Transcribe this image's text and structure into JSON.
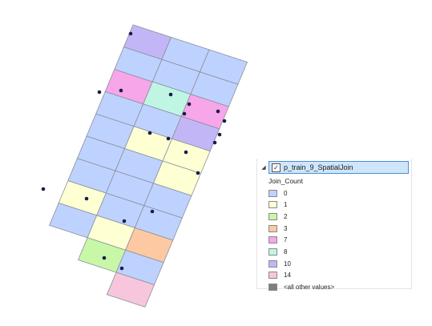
{
  "toc": {
    "layer_name": "p_train_9_SpatialJoin",
    "layer_checked": true,
    "expand_icon": "triangle-down-icon",
    "field_name": "Join_Count",
    "legend": [
      {
        "label": "0",
        "color": "#bed2ff"
      },
      {
        "label": "1",
        "color": "#ffffd4"
      },
      {
        "label": "2",
        "color": "#c8f7a8"
      },
      {
        "label": "3",
        "color": "#fcc9a2"
      },
      {
        "label": "7",
        "color": "#f7a6ea"
      },
      {
        "label": "8",
        "color": "#c0f5e4"
      },
      {
        "label": "10",
        "color": "#c3b6f6"
      },
      {
        "label": "14",
        "color": "#f7c6dc"
      },
      {
        "label": "<all other values>",
        "color": "#7f7f7f"
      }
    ]
  },
  "map": {
    "outline_color": "#8a8f99",
    "point_color": "#1a1b4b",
    "cells": [
      {
        "row": 0,
        "col": 0,
        "value": 10
      },
      {
        "row": 0,
        "col": 1,
        "value": 0
      },
      {
        "row": 0,
        "col": 2,
        "value": 0
      },
      {
        "row": 1,
        "col": 0,
        "value": 0
      },
      {
        "row": 1,
        "col": 1,
        "value": 0
      },
      {
        "row": 1,
        "col": 2,
        "value": 0
      },
      {
        "row": 2,
        "col": 0,
        "value": 7
      },
      {
        "row": 2,
        "col": 1,
        "value": 8
      },
      {
        "row": 2,
        "col": 2,
        "value": 7
      },
      {
        "row": 3,
        "col": 0,
        "value": 0
      },
      {
        "row": 3,
        "col": 1,
        "value": 0
      },
      {
        "row": 3,
        "col": 2,
        "value": 10
      },
      {
        "row": 4,
        "col": 0,
        "value": 0
      },
      {
        "row": 4,
        "col": 1,
        "value": 1
      },
      {
        "row": 4,
        "col": 2,
        "value": 1
      },
      {
        "row": 5,
        "col": 0,
        "value": 0
      },
      {
        "row": 5,
        "col": 1,
        "value": 0
      },
      {
        "row": 5,
        "col": 2,
        "value": 1
      },
      {
        "row": 6,
        "col": 0,
        "value": 0
      },
      {
        "row": 6,
        "col": 1,
        "value": 0
      },
      {
        "row": 6,
        "col": 2,
        "value": 0
      },
      {
        "row": 7,
        "col": 0,
        "value": 1
      },
      {
        "row": 7,
        "col": 1,
        "value": 0
      },
      {
        "row": 7,
        "col": 2,
        "value": 0
      },
      {
        "row": 8,
        "col": 0,
        "value": 0
      },
      {
        "row": 8,
        "col": 1,
        "value": 1
      },
      {
        "row": 8,
        "col": 2,
        "value": 3
      },
      {
        "row": 9,
        "col": 1,
        "value": 2
      },
      {
        "row": 9,
        "col": 2,
        "value": 0
      },
      {
        "row": 10,
        "col": 2,
        "value": 14
      }
    ]
  }
}
